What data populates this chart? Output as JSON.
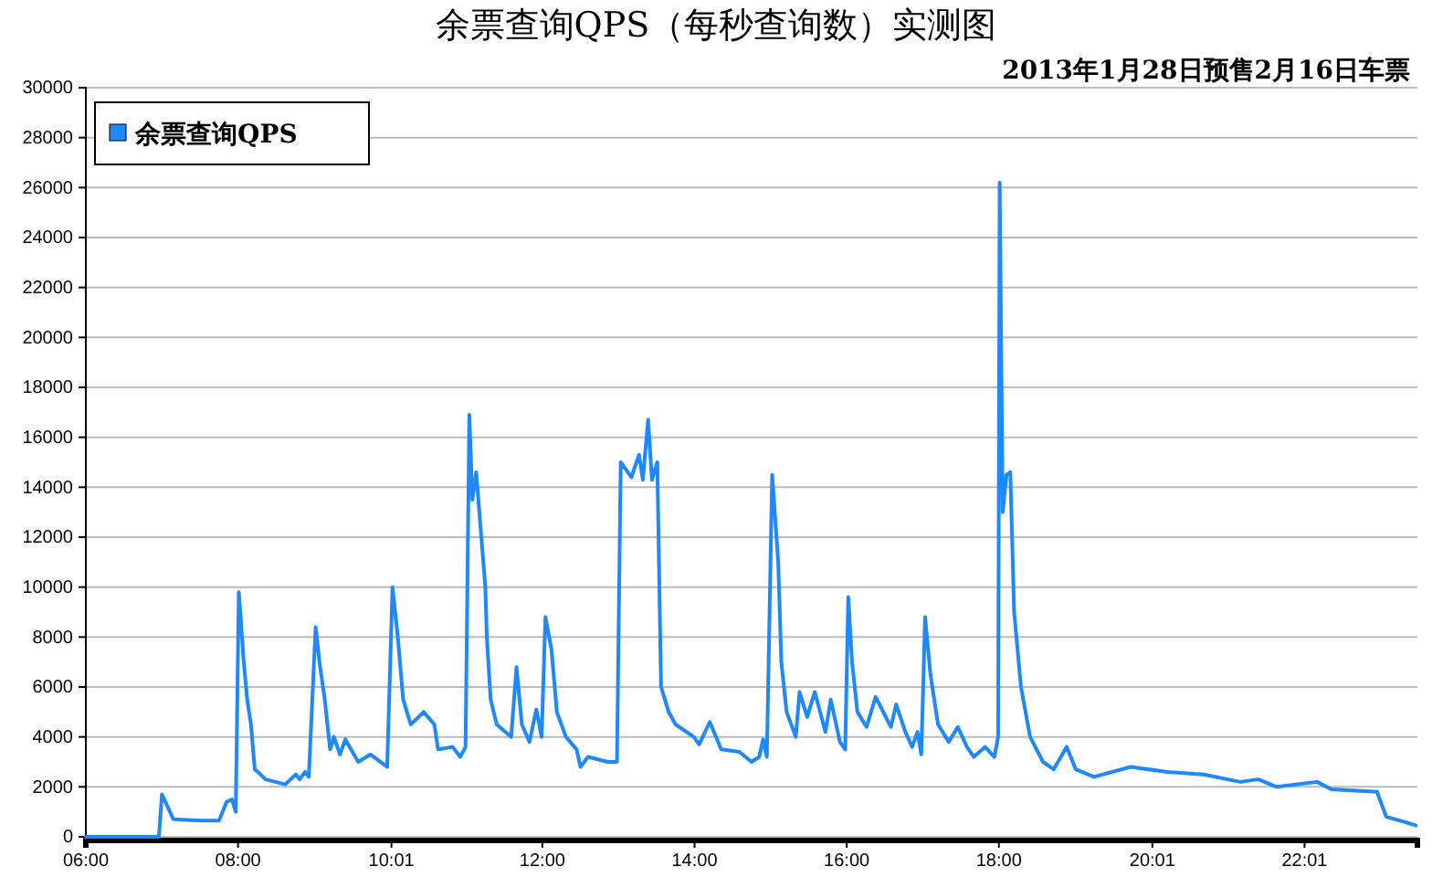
{
  "chart_data": {
    "type": "line",
    "title": "余票查询QPS（每秒查询数）实测图",
    "subtitle": "2013年1月28日预售2月16日车票",
    "x": [
      6,
      6.96,
      7.0,
      7.15,
      7.5,
      7.75,
      7.85,
      7.92,
      7.97,
      8.01,
      8.03,
      8.07,
      8.12,
      8.17,
      8.22,
      8.26,
      8.36,
      8.62,
      8.76,
      8.81,
      8.88,
      8.93,
      9.02,
      9.07,
      9.14,
      9.21,
      9.26,
      9.34,
      9.41,
      9.58,
      9.74,
      9.96,
      10.03,
      10.1,
      10.17,
      10.27,
      10.44,
      10.58,
      10.63,
      10.82,
      10.92,
      10.99,
      11.04,
      11.08,
      11.13,
      11.25,
      11.27,
      11.32,
      11.4,
      11.59,
      11.66,
      11.73,
      11.83,
      11.92,
      11.99,
      12.04,
      12.12,
      12.19,
      12.31,
      12.45,
      12.5,
      12.6,
      12.86,
      12.98,
      13.03,
      13.17,
      13.27,
      13.32,
      13.39,
      13.44,
      13.51,
      13.56,
      13.66,
      13.75,
      13.99,
      14.06,
      14.2,
      14.35,
      14.59,
      14.75,
      14.85,
      14.9,
      14.95,
      15.02,
      15.1,
      15.14,
      15.21,
      15.33,
      15.38,
      15.48,
      15.58,
      15.72,
      15.79,
      15.91,
      15.98,
      16.02,
      16.07,
      16.14,
      16.26,
      16.38,
      16.58,
      16.65,
      16.77,
      16.86,
      16.93,
      16.98,
      17.03,
      17.1,
      17.2,
      17.34,
      17.46,
      17.58,
      17.67,
      17.82,
      17.94,
      17.99,
      18.01,
      18.05,
      18.1,
      18.15,
      18.2,
      18.29,
      18.41,
      18.58,
      18.72,
      18.89,
      19.01,
      19.25,
      19.73,
      20.21,
      20.69,
      21.17,
      21.41,
      21.65,
      22.18,
      22.37,
      22.97,
      23.09,
      23.33,
      23.48
    ],
    "series": [
      {
        "name": "余票查询QPS",
        "color": "#1e88ff",
        "values": [
          0,
          0,
          1700,
          700,
          650,
          650,
          1400,
          1500,
          1000,
          9800,
          9000,
          7200,
          5500,
          4500,
          2700,
          2600,
          2300,
          2100,
          2500,
          2300,
          2600,
          2400,
          8400,
          7000,
          5500,
          3500,
          4000,
          3300,
          3900,
          3000,
          3300,
          2800,
          10000,
          8000,
          5500,
          4500,
          5000,
          4500,
          3500,
          3600,
          3200,
          3600,
          16900,
          13500,
          14600,
          10000,
          8000,
          5500,
          4500,
          4000,
          6800,
          4500,
          3800,
          5100,
          4000,
          8800,
          7500,
          5000,
          4000,
          3500,
          2800,
          3200,
          3000,
          3000,
          15000,
          14400,
          15300,
          14300,
          16700,
          14300,
          15000,
          6000,
          5000,
          4500,
          4000,
          3700,
          4600,
          3500,
          3400,
          3000,
          3200,
          3900,
          3200,
          14500,
          11000,
          7000,
          5000,
          4000,
          5800,
          4800,
          5800,
          4200,
          5500,
          3800,
          3500,
          9600,
          7000,
          5000,
          4400,
          5600,
          4400,
          5300,
          4200,
          3600,
          4200,
          3300,
          8800,
          6500,
          4500,
          3800,
          4400,
          3600,
          3200,
          3600,
          3200,
          4000,
          26200,
          13000,
          14500,
          14600,
          9000,
          6000,
          4000,
          3000,
          2700,
          3600,
          2700,
          2400,
          2800,
          2600,
          2500,
          2200,
          2300,
          2000,
          2200,
          1900,
          1800,
          800,
          600,
          450
        ]
      }
    ],
    "xlim": [
      6,
      23.5
    ],
    "xticks": [
      {
        "value": 6,
        "label": "06:00"
      },
      {
        "value": 8,
        "label": "08:00"
      },
      {
        "value": 10.0167,
        "label": "10:01"
      },
      {
        "value": 12,
        "label": "12:00"
      },
      {
        "value": 14,
        "label": "14:00"
      },
      {
        "value": 16,
        "label": "16:00"
      },
      {
        "value": 18,
        "label": "18:00"
      },
      {
        "value": 20.0167,
        "label": "20:01"
      },
      {
        "value": 22.0167,
        "label": "22:01"
      }
    ],
    "ylim": [
      0,
      30000
    ],
    "yticks": [
      0,
      2000,
      4000,
      6000,
      8000,
      10000,
      12000,
      14000,
      16000,
      18000,
      20000,
      22000,
      24000,
      26000,
      28000,
      30000
    ],
    "grid": "y",
    "legend": "top left",
    "marker": "none",
    "line_style": "solid"
  }
}
